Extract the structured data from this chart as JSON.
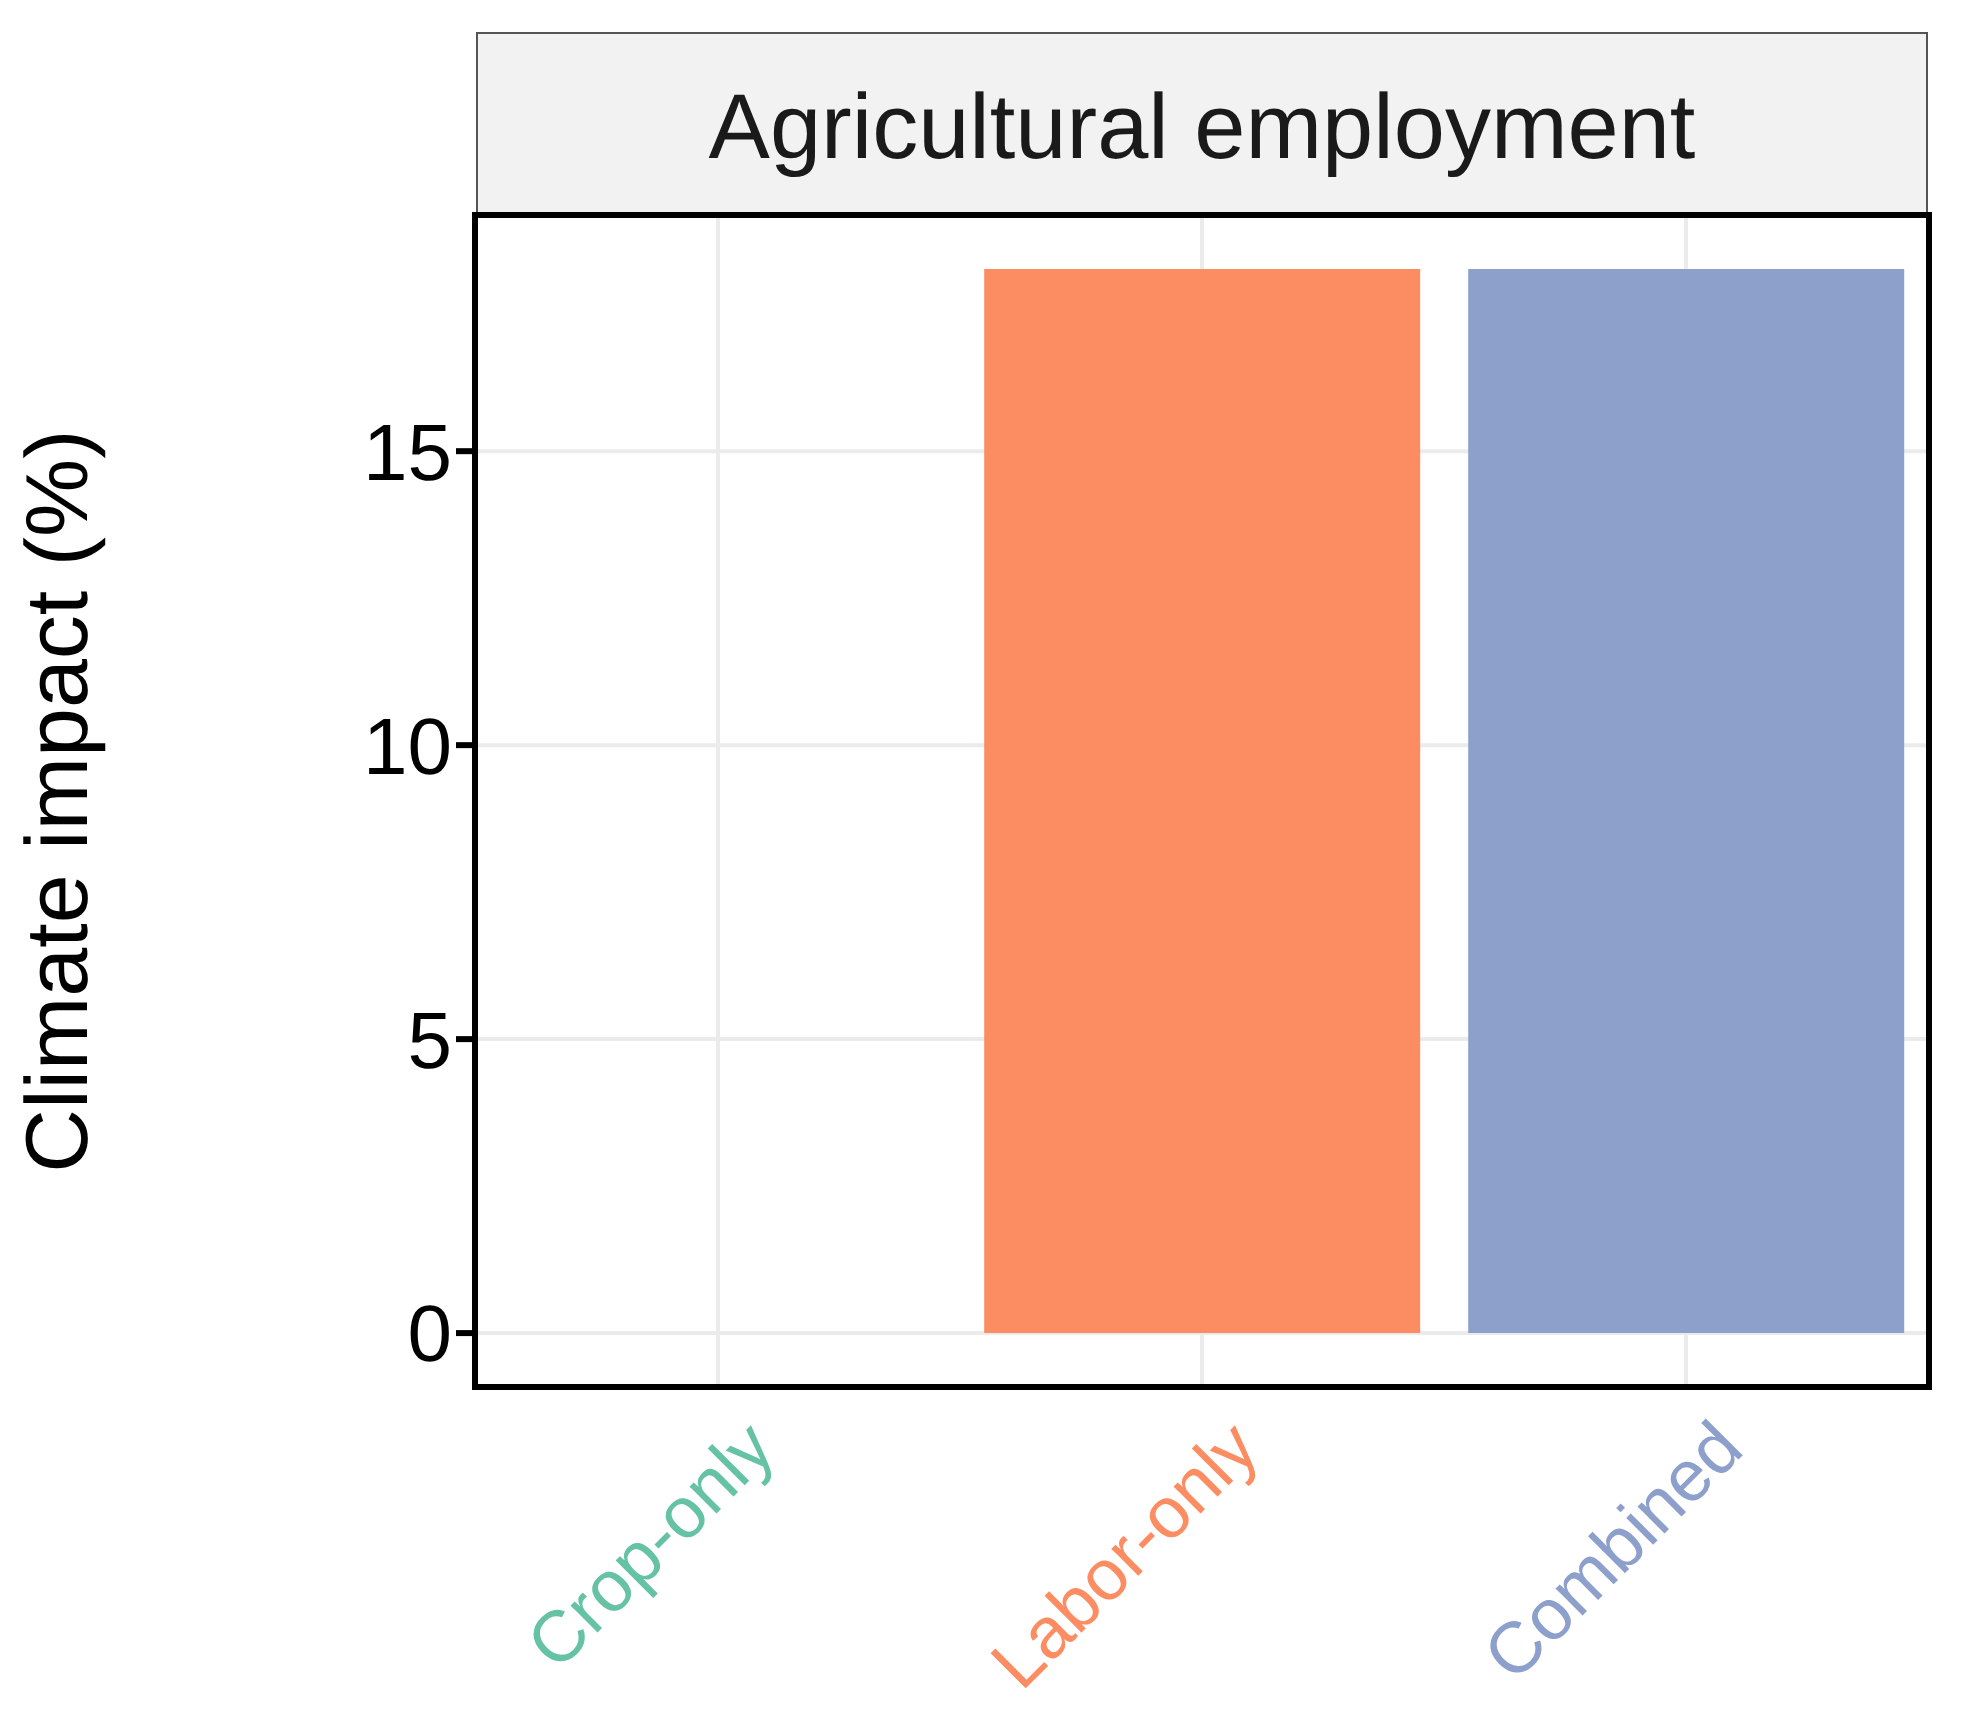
{
  "chart_data": {
    "type": "bar",
    "title": "Agricultural employment",
    "ylabel": "Climate impact (%)",
    "categories": [
      "Crop-only",
      "Labor-only",
      "Combined"
    ],
    "values": [
      0,
      18.1,
      18.1
    ],
    "colors": [
      "#66c2a5",
      "#fc8d62",
      "#8da0cb"
    ],
    "ylim": [
      -0.9,
      19
    ],
    "yticks": [
      0,
      5,
      10,
      15
    ],
    "grid": true
  }
}
